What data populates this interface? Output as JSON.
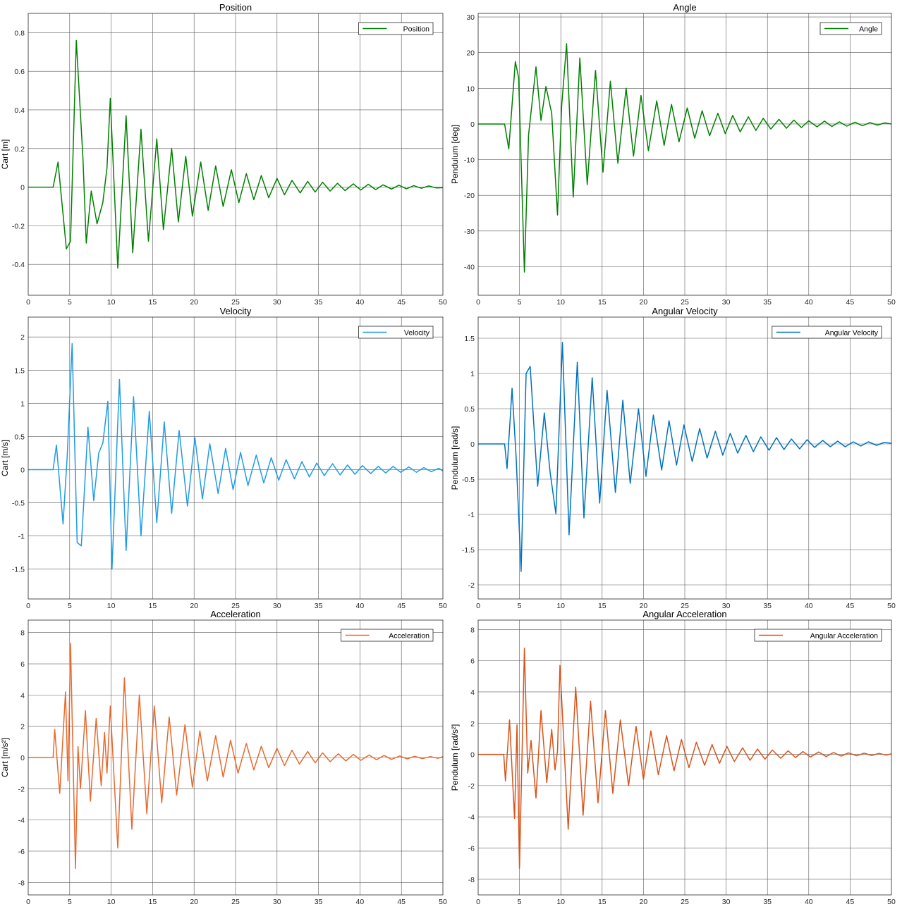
{
  "chart_data": [
    {
      "id": "position",
      "type": "line",
      "title": "Position",
      "xlabel": "",
      "ylabel": "Cart [m]",
      "xlim": [
        0,
        50
      ],
      "ylim": [
        -0.56,
        0.9
      ],
      "xticks": [
        0,
        5,
        10,
        15,
        20,
        25,
        30,
        35,
        40,
        45,
        50
      ],
      "yticks": [
        -0.4,
        -0.2,
        0,
        0.2,
        0.4,
        0.6,
        0.8
      ],
      "ytick_labels": [
        "-0.4",
        "-0.2",
        "0",
        "0.2",
        "0.4",
        "0.6",
        "0.8"
      ],
      "grid": true,
      "legend_position": "top-right",
      "series": [
        {
          "name": "Position",
          "color": "#008000",
          "x": [
            0,
            3.0,
            3.6,
            4.6,
            5.1,
            5.8,
            6.6,
            7.0,
            7.6,
            8.3,
            9.0,
            9.5,
            9.9,
            10.8,
            11.8,
            12.6,
            13.6,
            14.5,
            15.5,
            16.3,
            17.3,
            18.1,
            19.0,
            19.8,
            20.8,
            21.7,
            22.6,
            23.5,
            24.5,
            25.4,
            26.3,
            27.2,
            28.1,
            29.0,
            30.0,
            30.9,
            31.8,
            32.8,
            33.7,
            34.6,
            35.5,
            36.4,
            37.3,
            38.2,
            39.2,
            40.1,
            41.0,
            41.9,
            42.8,
            43.8,
            44.7,
            45.6,
            46.5,
            47.4,
            48.3,
            49.2,
            50
          ],
          "y": [
            0,
            0,
            0.13,
            -0.32,
            -0.28,
            0.76,
            0.15,
            -0.29,
            -0.02,
            -0.19,
            -0.08,
            0.1,
            0.46,
            -0.42,
            0.37,
            -0.34,
            0.3,
            -0.28,
            0.25,
            -0.22,
            0.2,
            -0.18,
            0.16,
            -0.15,
            0.13,
            -0.12,
            0.11,
            -0.1,
            0.09,
            -0.08,
            0.07,
            -0.065,
            0.06,
            -0.055,
            0.045,
            -0.04,
            0.035,
            -0.03,
            0.03,
            -0.025,
            0.025,
            -0.02,
            0.02,
            -0.018,
            0.017,
            -0.015,
            0.015,
            -0.013,
            0.012,
            -0.01,
            0.01,
            -0.009,
            0.008,
            -0.006,
            0.006,
            -0.004,
            -0.003
          ]
        }
      ]
    },
    {
      "id": "angle",
      "type": "line",
      "title": "Angle",
      "xlabel": "",
      "ylabel": "Pendulum [deg]",
      "xlim": [
        0,
        50
      ],
      "ylim": [
        -48,
        31
      ],
      "xticks": [
        0,
        5,
        10,
        15,
        20,
        25,
        30,
        35,
        40,
        45,
        50
      ],
      "yticks": [
        -40,
        -30,
        -20,
        -10,
        0,
        10,
        20,
        30
      ],
      "ytick_labels": [
        "-40",
        "-30",
        "-20",
        "-10",
        "0",
        "10",
        "20",
        "30"
      ],
      "grid": true,
      "legend_position": "top-right",
      "series": [
        {
          "name": "Angle",
          "color": "#008000",
          "x": [
            0,
            3.2,
            3.7,
            4.5,
            4.9,
            5.6,
            6.1,
            7.0,
            7.6,
            8.2,
            8.9,
            9.6,
            10.1,
            10.7,
            11.5,
            12.3,
            13.2,
            14.2,
            15.1,
            16.0,
            16.9,
            17.9,
            18.8,
            19.7,
            20.6,
            21.6,
            22.5,
            23.4,
            24.3,
            25.3,
            26.2,
            27.1,
            28.0,
            29.0,
            29.9,
            30.8,
            31.7,
            32.7,
            33.6,
            34.5,
            35.4,
            36.4,
            37.3,
            38.2,
            39.1,
            40.0,
            41.0,
            41.9,
            42.8,
            43.7,
            44.6,
            45.6,
            46.5,
            47.4,
            48.3,
            49.2,
            50
          ],
          "y": [
            0,
            0,
            -7,
            17.5,
            13,
            -41.5,
            -3,
            16,
            1,
            10.5,
            3,
            -25.5,
            5,
            22.5,
            -20.5,
            18.5,
            -17,
            15,
            -13.5,
            12,
            -11,
            10,
            -9,
            8,
            -7.5,
            6.5,
            -6,
            5.5,
            -5,
            4.5,
            -4,
            3.7,
            -3.3,
            3,
            -2.7,
            2.4,
            -2.2,
            2,
            -1.8,
            1.6,
            -1.4,
            1.3,
            -1.2,
            1.1,
            -1,
            0.9,
            -0.8,
            0.8,
            -0.7,
            0.6,
            -0.6,
            0.5,
            -0.5,
            0.4,
            -0.3,
            0.3,
            0
          ]
        }
      ]
    },
    {
      "id": "velocity",
      "type": "line",
      "title": "Velocity",
      "xlabel": "",
      "ylabel": "Cart [m/s]",
      "xlim": [
        0,
        50
      ],
      "ylim": [
        -1.95,
        2.3
      ],
      "xticks": [
        0,
        5,
        10,
        15,
        20,
        25,
        30,
        35,
        40,
        45,
        50
      ],
      "yticks": [
        -1.5,
        -1,
        -0.5,
        0,
        0.5,
        1,
        1.5,
        2
      ],
      "ytick_labels": [
        "-1.5",
        "-1",
        "-0.5",
        "0",
        "0.5",
        "1",
        "1.5",
        "2"
      ],
      "grid": true,
      "legend_position": "top-right",
      "series": [
        {
          "name": "Velocity",
          "color": "#1e9be6",
          "x": [
            0,
            3.0,
            3.4,
            4.2,
            4.7,
            5.3,
            5.9,
            6.4,
            7.2,
            7.9,
            8.5,
            9.0,
            9.6,
            10.1,
            11.0,
            11.8,
            12.7,
            13.6,
            14.6,
            15.5,
            16.4,
            17.3,
            18.2,
            19.2,
            20.1,
            21.0,
            21.9,
            22.9,
            23.8,
            24.7,
            25.6,
            26.5,
            27.5,
            28.4,
            29.3,
            30.2,
            31.1,
            32.1,
            33.0,
            33.9,
            34.8,
            35.7,
            36.7,
            37.6,
            38.5,
            39.4,
            40.3,
            41.3,
            42.2,
            43.1,
            44.0,
            44.9,
            45.9,
            46.8,
            47.7,
            48.6,
            49.5,
            50
          ],
          "y": [
            0,
            0,
            0.37,
            -0.82,
            0.2,
            1.9,
            -1.1,
            -1.15,
            0.64,
            -0.47,
            0.25,
            0.4,
            1.03,
            -1.5,
            1.36,
            -1.22,
            1.1,
            -1.0,
            0.88,
            -0.8,
            0.72,
            -0.66,
            0.59,
            -0.55,
            0.48,
            -0.44,
            0.39,
            -0.36,
            0.32,
            -0.3,
            0.26,
            -0.24,
            0.22,
            -0.2,
            0.18,
            -0.16,
            0.15,
            -0.14,
            0.12,
            -0.11,
            0.1,
            -0.09,
            0.09,
            -0.08,
            0.07,
            -0.07,
            0.06,
            -0.06,
            0.05,
            -0.05,
            0.05,
            -0.04,
            0.04,
            -0.04,
            0.03,
            -0.03,
            0.02,
            -0.02
          ]
        }
      ]
    },
    {
      "id": "angular_velocity",
      "type": "line",
      "title": "Angular Velocity",
      "xlabel": "",
      "ylabel": "Pendulum [rad/s]",
      "xlim": [
        0,
        50
      ],
      "ylim": [
        -2.2,
        1.8
      ],
      "xticks": [
        0,
        5,
        10,
        15,
        20,
        25,
        30,
        35,
        40,
        45,
        50
      ],
      "yticks": [
        -2,
        -1.5,
        -1,
        -0.5,
        0,
        0.5,
        1,
        1.5
      ],
      "ytick_labels": [
        "-2",
        "-1.5",
        "-1",
        "-0.5",
        "0",
        "0.5",
        "1",
        "1.5"
      ],
      "grid": true,
      "legend_position": "top-right",
      "series": [
        {
          "name": "Angular Velocity",
          "color": "#0072bd",
          "x": [
            0,
            3.2,
            3.5,
            4.1,
            4.6,
            5.2,
            5.8,
            6.3,
            7.2,
            8.0,
            8.7,
            9.4,
            10.2,
            11.0,
            12.0,
            12.8,
            13.8,
            14.7,
            15.6,
            16.6,
            17.5,
            18.4,
            19.4,
            20.3,
            21.2,
            22.2,
            23.1,
            24.0,
            24.9,
            25.9,
            26.8,
            27.7,
            28.7,
            29.6,
            30.5,
            31.4,
            32.4,
            33.3,
            34.2,
            35.2,
            36.1,
            37.0,
            37.9,
            38.9,
            39.8,
            40.7,
            41.7,
            42.6,
            43.5,
            44.4,
            45.4,
            46.3,
            47.2,
            48.2,
            49.1,
            50
          ],
          "y": [
            0,
            0,
            -0.35,
            0.79,
            -0.2,
            -1.81,
            1.0,
            1.1,
            -0.6,
            0.44,
            -0.4,
            -0.99,
            1.44,
            -1.29,
            1.16,
            -1.05,
            0.94,
            -0.84,
            0.76,
            -0.69,
            0.62,
            -0.56,
            0.5,
            -0.46,
            0.41,
            -0.37,
            0.33,
            -0.3,
            0.27,
            -0.25,
            0.22,
            -0.2,
            0.18,
            -0.16,
            0.15,
            -0.13,
            0.12,
            -0.11,
            0.1,
            -0.09,
            0.09,
            -0.08,
            0.07,
            -0.07,
            0.06,
            -0.05,
            0.05,
            -0.04,
            0.04,
            -0.04,
            0.03,
            -0.03,
            0.03,
            -0.02,
            0.02,
            0.01
          ]
        }
      ]
    },
    {
      "id": "acceleration",
      "type": "line",
      "title": "Acceleration",
      "xlabel": "",
      "ylabel": "Cart [m/s²]",
      "xlim": [
        0,
        50
      ],
      "ylim": [
        -8.8,
        8.8
      ],
      "xticks": [
        0,
        5,
        10,
        15,
        20,
        25,
        30,
        35,
        40,
        45,
        50
      ],
      "yticks": [
        -8,
        -6,
        -4,
        -2,
        0,
        2,
        4,
        6,
        8
      ],
      "ytick_labels": [
        "-8",
        "-6",
        "-4",
        "-2",
        "0",
        "2",
        "4",
        "6",
        "8"
      ],
      "grid": true,
      "legend_position": "top-right",
      "series": [
        {
          "name": "Acceleration",
          "color": "#e8692e",
          "x": [
            0,
            3.0,
            3.2,
            3.8,
            4.5,
            4.8,
            5.1,
            5.7,
            6.0,
            6.3,
            6.9,
            7.5,
            8.2,
            8.8,
            9.2,
            9.5,
            9.9,
            10.8,
            11.6,
            12.5,
            13.4,
            14.3,
            15.2,
            16.1,
            17.0,
            17.9,
            18.9,
            19.8,
            20.7,
            21.6,
            22.6,
            23.5,
            24.4,
            25.3,
            26.3,
            27.2,
            28.1,
            29.0,
            30.0,
            30.9,
            31.8,
            32.7,
            33.7,
            34.6,
            35.5,
            36.4,
            37.4,
            38.3,
            39.2,
            40.1,
            41.1,
            42.0,
            42.9,
            43.8,
            44.8,
            45.7,
            46.6,
            47.5,
            48.5,
            49.4,
            50
          ],
          "y": [
            0,
            0,
            1.8,
            -2.3,
            4.2,
            -1.5,
            7.3,
            -7.1,
            0.7,
            -2.0,
            3.0,
            -2.8,
            2.5,
            -1.8,
            1.6,
            -1.0,
            3.3,
            -5.8,
            5.1,
            -4.6,
            4.0,
            -3.6,
            3.3,
            -2.9,
            2.6,
            -2.4,
            2.1,
            -1.9,
            1.7,
            -1.5,
            1.4,
            -1.25,
            1.1,
            -1.0,
            0.9,
            -0.8,
            0.72,
            -0.65,
            0.58,
            -0.52,
            0.47,
            -0.42,
            0.38,
            -0.34,
            0.3,
            -0.27,
            0.24,
            -0.22,
            0.2,
            -0.18,
            0.16,
            -0.14,
            0.13,
            -0.12,
            0.1,
            -0.09,
            0.08,
            -0.07,
            0.06,
            -0.05,
            0.05
          ]
        }
      ]
    },
    {
      "id": "angular_acceleration",
      "type": "line",
      "title": "Angular Acceleration",
      "xlabel": "",
      "ylabel": "Pendulum [rad/s²]",
      "xlim": [
        0,
        50
      ],
      "ylim": [
        -9,
        8.6
      ],
      "xticks": [
        0,
        5,
        10,
        15,
        20,
        25,
        30,
        35,
        40,
        45,
        50
      ],
      "yticks": [
        -8,
        -6,
        -4,
        -2,
        0,
        2,
        4,
        6,
        8
      ],
      "ytick_labels": [
        "-8",
        "-6",
        "-4",
        "-2",
        "0",
        "2",
        "4",
        "6",
        "8"
      ],
      "grid": true,
      "legend_position": "top-right",
      "series": [
        {
          "name": "Angular Acceleration",
          "color": "#d95319",
          "x": [
            0,
            3.1,
            3.3,
            3.8,
            4.4,
            4.7,
            5.0,
            5.6,
            6.0,
            6.4,
            7.0,
            7.6,
            8.3,
            8.9,
            9.3,
            9.6,
            9.9,
            10.9,
            11.8,
            12.7,
            13.6,
            14.5,
            15.4,
            16.3,
            17.2,
            18.2,
            19.1,
            20.0,
            20.9,
            21.8,
            22.8,
            23.7,
            24.6,
            25.5,
            26.4,
            27.4,
            28.3,
            29.2,
            30.1,
            31.0,
            32.0,
            32.9,
            33.8,
            34.7,
            35.6,
            36.6,
            37.5,
            38.4,
            39.3,
            40.2,
            41.2,
            42.1,
            43.0,
            43.9,
            44.8,
            45.8,
            46.7,
            47.6,
            48.5,
            49.4,
            50
          ],
          "y": [
            0,
            0,
            -1.7,
            2.2,
            -4.1,
            1.9,
            -7.3,
            6.8,
            -1.2,
            0.9,
            -2.8,
            2.8,
            -1.8,
            1.6,
            -1.0,
            0.2,
            5.7,
            -4.8,
            4.3,
            -3.9,
            3.4,
            -3.1,
            2.8,
            -2.5,
            2.2,
            -2.0,
            1.8,
            -1.6,
            1.5,
            -1.3,
            1.2,
            -1.05,
            0.95,
            -0.85,
            0.78,
            -0.7,
            0.63,
            -0.57,
            0.51,
            -0.46,
            0.42,
            -0.38,
            0.34,
            -0.31,
            0.28,
            -0.25,
            0.23,
            -0.2,
            0.18,
            -0.17,
            0.15,
            -0.14,
            0.12,
            -0.11,
            0.1,
            -0.09,
            0.08,
            -0.07,
            0.06,
            -0.05,
            0.04
          ]
        }
      ]
    }
  ]
}
